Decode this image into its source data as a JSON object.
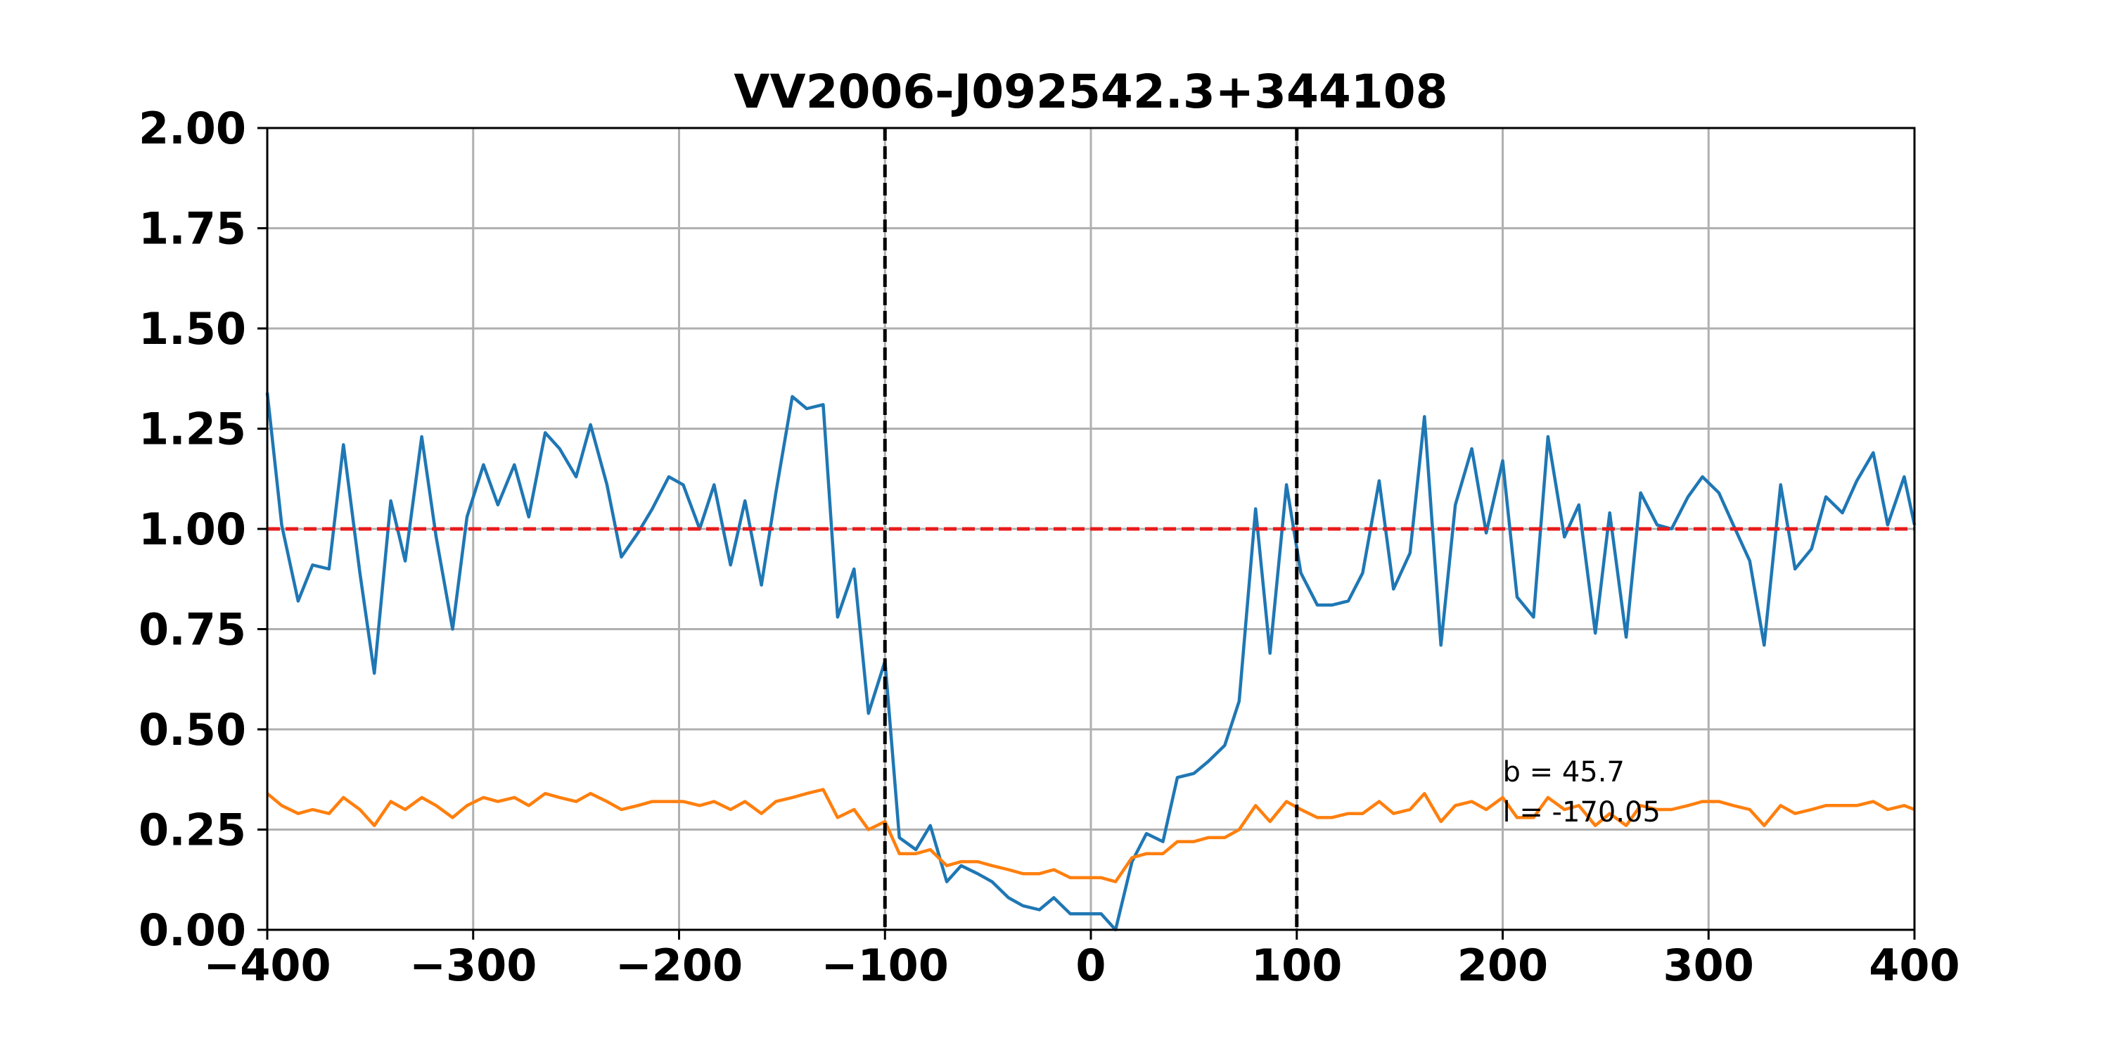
{
  "chart_data": {
    "type": "line",
    "title": "VV2006-J092542.3+344108",
    "xlabel": "",
    "ylabel": "",
    "xlim": [
      -400,
      400
    ],
    "ylim": [
      0,
      2
    ],
    "grid": true,
    "xticks": [
      -400,
      -300,
      -200,
      -100,
      0,
      100,
      200,
      300,
      400
    ],
    "xtick_labels": [
      "−400",
      "−300",
      "−200",
      "−100",
      "0",
      "100",
      "200",
      "300",
      "400"
    ],
    "yticks": [
      0,
      0.25,
      0.5,
      0.75,
      1.0,
      1.25,
      1.5,
      1.75,
      2.0
    ],
    "ytick_labels": [
      "0.00",
      "0.25",
      "0.50",
      "0.75",
      "1.00",
      "1.25",
      "1.50",
      "1.75",
      "2.00"
    ],
    "reference_lines": [
      {
        "orientation": "horizontal",
        "value": 1.0,
        "color": "#e81b1b",
        "style": "dashed"
      },
      {
        "orientation": "vertical",
        "value": -100,
        "color": "#000000",
        "style": "dashed"
      },
      {
        "orientation": "vertical",
        "value": 100,
        "color": "#000000",
        "style": "dashed"
      }
    ],
    "annotations": [
      {
        "text": "b = 45.7",
        "x": 200,
        "y": 0.37
      },
      {
        "text": "l = -170.05",
        "x": 200,
        "y": 0.27
      }
    ],
    "series": [
      {
        "color": "#1f77b4",
        "x": [
          -400,
          -393,
          -385,
          -378,
          -370,
          -363,
          -355,
          -348,
          -340,
          -333,
          -325,
          -318,
          -310,
          -303,
          -295,
          -288,
          -280,
          -273,
          -265,
          -258,
          -250,
          -243,
          -235,
          -228,
          -220,
          -213,
          -205,
          -198,
          -190,
          -183,
          -175,
          -168,
          -160,
          -153,
          -145,
          -138,
          -130,
          -123,
          -115,
          -108,
          -100,
          -93,
          -85,
          -78,
          -70,
          -63,
          -55,
          -48,
          -40,
          -33,
          -25,
          -18,
          -10,
          -3,
          5,
          12,
          20,
          27,
          35,
          42,
          50,
          57,
          65,
          72,
          80,
          87,
          95,
          102,
          110,
          117,
          125,
          132,
          140,
          147,
          155,
          162,
          170,
          177,
          185,
          192,
          200,
          207,
          215,
          222,
          230,
          237,
          245,
          252,
          260,
          267,
          275,
          282,
          290,
          297,
          305,
          312,
          320,
          327,
          335,
          342,
          350,
          357,
          365,
          372,
          380,
          387,
          395,
          400
        ],
        "y": [
          1.34,
          1.01,
          0.82,
          0.91,
          0.9,
          1.21,
          0.89,
          0.64,
          1.07,
          0.92,
          1.23,
          0.98,
          0.75,
          1.03,
          1.16,
          1.06,
          1.16,
          1.03,
          1.24,
          1.2,
          1.13,
          1.26,
          1.11,
          0.93,
          0.99,
          1.05,
          1.13,
          1.11,
          1.0,
          1.11,
          0.91,
          1.07,
          0.86,
          1.09,
          1.33,
          1.3,
          1.31,
          0.78,
          0.9,
          0.54,
          0.67,
          0.23,
          0.2,
          0.26,
          0.12,
          0.16,
          0.14,
          0.12,
          0.08,
          0.06,
          0.05,
          0.08,
          0.04,
          0.04,
          0.04,
          0.0,
          0.17,
          0.24,
          0.22,
          0.38,
          0.39,
          0.42,
          0.46,
          0.57,
          1.05,
          0.69,
          1.11,
          0.89,
          0.81,
          0.81,
          0.82,
          0.89,
          1.12,
          0.85,
          0.94,
          1.28,
          0.71,
          1.06,
          1.2,
          0.99,
          1.17,
          0.83,
          0.78,
          1.23,
          0.98,
          1.06,
          0.74,
          1.04,
          0.73,
          1.09,
          1.01,
          1.0,
          1.08,
          1.13,
          1.09,
          1.01,
          0.92,
          0.71,
          1.11,
          0.9,
          0.95,
          1.08,
          1.04,
          1.12,
          1.19,
          1.01,
          1.13,
          1.01
        ]
      },
      {
        "color": "#ff7f0e",
        "x": [
          -400,
          -393,
          -385,
          -378,
          -370,
          -363,
          -355,
          -348,
          -340,
          -333,
          -325,
          -318,
          -310,
          -303,
          -295,
          -288,
          -280,
          -273,
          -265,
          -258,
          -250,
          -243,
          -235,
          -228,
          -220,
          -213,
          -205,
          -198,
          -190,
          -183,
          -175,
          -168,
          -160,
          -153,
          -145,
          -138,
          -130,
          -123,
          -115,
          -108,
          -100,
          -93,
          -85,
          -78,
          -70,
          -63,
          -55,
          -48,
          -40,
          -33,
          -25,
          -18,
          -10,
          -3,
          5,
          12,
          20,
          27,
          35,
          42,
          50,
          57,
          65,
          72,
          80,
          87,
          95,
          102,
          110,
          117,
          125,
          132,
          140,
          147,
          155,
          162,
          170,
          177,
          185,
          192,
          200,
          207,
          215,
          222,
          230,
          237,
          245,
          252,
          260,
          267,
          275,
          282,
          290,
          297,
          305,
          312,
          320,
          327,
          335,
          342,
          350,
          357,
          365,
          372,
          380,
          387,
          395,
          400
        ],
        "y": [
          0.34,
          0.31,
          0.29,
          0.3,
          0.29,
          0.33,
          0.3,
          0.26,
          0.32,
          0.3,
          0.33,
          0.31,
          0.28,
          0.31,
          0.33,
          0.32,
          0.33,
          0.31,
          0.34,
          0.33,
          0.32,
          0.34,
          0.32,
          0.3,
          0.31,
          0.32,
          0.32,
          0.32,
          0.31,
          0.32,
          0.3,
          0.32,
          0.29,
          0.32,
          0.33,
          0.34,
          0.35,
          0.28,
          0.3,
          0.25,
          0.27,
          0.19,
          0.19,
          0.2,
          0.16,
          0.17,
          0.17,
          0.16,
          0.15,
          0.14,
          0.14,
          0.15,
          0.13,
          0.13,
          0.13,
          0.12,
          0.18,
          0.19,
          0.19,
          0.22,
          0.22,
          0.23,
          0.23,
          0.25,
          0.31,
          0.27,
          0.32,
          0.3,
          0.28,
          0.28,
          0.29,
          0.29,
          0.32,
          0.29,
          0.3,
          0.34,
          0.27,
          0.31,
          0.32,
          0.3,
          0.33,
          0.28,
          0.28,
          0.33,
          0.3,
          0.31,
          0.26,
          0.29,
          0.26,
          0.31,
          0.3,
          0.3,
          0.31,
          0.32,
          0.32,
          0.31,
          0.3,
          0.26,
          0.31,
          0.29,
          0.3,
          0.31,
          0.31,
          0.31,
          0.32,
          0.3,
          0.31,
          0.3
        ]
      }
    ]
  }
}
